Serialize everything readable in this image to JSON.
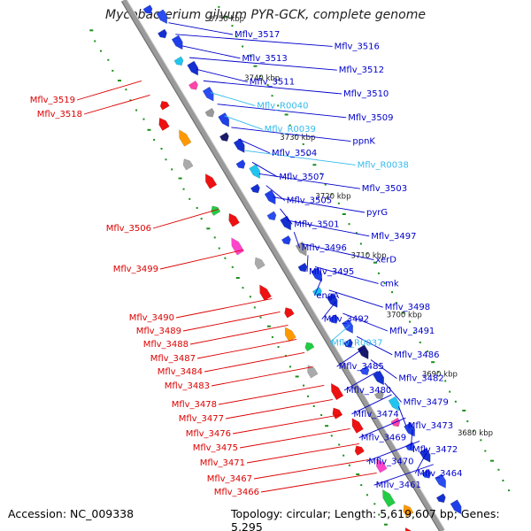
{
  "title": "Mycobacterium gilvum PYR-GCK, complete genome",
  "footer": {
    "accession_label": "Accession:",
    "accession": "NC_009338",
    "topology_text": "Topology: circular; Length: 5,619,607 bp; Genes: 5,295"
  },
  "colors": {
    "forward_label": "#0000cc",
    "rna_label": "#33bbee",
    "reverse_label": "#dd0000",
    "backbone": "#9a9a9a",
    "gc_dots": "#1a8f1a"
  },
  "scale_ticks": [
    "3750 kbp",
    "3740 kbp",
    "3730 kbp",
    "3720 kbp",
    "3710 kbp",
    "3700 kbp",
    "3690 kbp",
    "3680 kbp"
  ],
  "right_labels": [
    {
      "text": "Mflv_3517",
      "kind": "gene"
    },
    {
      "text": "Mflv_3516",
      "kind": "gene"
    },
    {
      "text": "Mflv_3513",
      "kind": "gene"
    },
    {
      "text": "Mflv_3512",
      "kind": "gene"
    },
    {
      "text": "Mflv_3511",
      "kind": "gene"
    },
    {
      "text": "Mflv_3510",
      "kind": "gene"
    },
    {
      "text": "Mflv_R0040",
      "kind": "rna"
    },
    {
      "text": "Mflv_3509",
      "kind": "gene"
    },
    {
      "text": "Mflv_R0039",
      "kind": "rna"
    },
    {
      "text": "ppnK",
      "kind": "gene"
    },
    {
      "text": "Mflv_3504",
      "kind": "gene"
    },
    {
      "text": "Mflv_R0038",
      "kind": "rna"
    },
    {
      "text": "Mflv_3507",
      "kind": "gene"
    },
    {
      "text": "Mflv_3503",
      "kind": "gene"
    },
    {
      "text": "Mflv_3505",
      "kind": "gene"
    },
    {
      "text": "pyrG",
      "kind": "gene"
    },
    {
      "text": "Mflv_3501",
      "kind": "gene"
    },
    {
      "text": "Mflv_3497",
      "kind": "gene"
    },
    {
      "text": "Mflv_3496",
      "kind": "gene"
    },
    {
      "text": "xerD",
      "kind": "gene"
    },
    {
      "text": "Mflv_3495",
      "kind": "gene"
    },
    {
      "text": "cmk",
      "kind": "gene"
    },
    {
      "text": "engA",
      "kind": "gene"
    },
    {
      "text": "Mflv_3498",
      "kind": "gene"
    },
    {
      "text": "Mflv_3492",
      "kind": "gene"
    },
    {
      "text": "Mflv_3491",
      "kind": "gene"
    },
    {
      "text": "Mflv_R0037",
      "kind": "rna"
    },
    {
      "text": "Mflv_3486",
      "kind": "gene"
    },
    {
      "text": "Mflv_3485",
      "kind": "gene"
    },
    {
      "text": "Mflv_3482",
      "kind": "gene"
    },
    {
      "text": "Mflv_3480",
      "kind": "gene"
    },
    {
      "text": "Mflv_3479",
      "kind": "gene"
    },
    {
      "text": "Mflv_3474",
      "kind": "gene"
    },
    {
      "text": "Mflv_3473",
      "kind": "gene"
    },
    {
      "text": "Mflv_3469",
      "kind": "gene"
    },
    {
      "text": "Mflv_3472",
      "kind": "gene"
    },
    {
      "text": "Mflv_3470",
      "kind": "gene"
    },
    {
      "text": "Mflv_3464",
      "kind": "gene"
    },
    {
      "text": "Mflv_3461",
      "kind": "gene"
    }
  ],
  "left_labels": [
    "Mflv_3519",
    "Mflv_3518",
    "Mflv_3506",
    "Mflv_3499",
    "Mflv_3490",
    "Mflv_3489",
    "Mflv_3488",
    "Mflv_3487",
    "Mflv_3484",
    "Mflv_3483",
    "Mflv_3478",
    "Mflv_3477",
    "Mflv_3476",
    "Mflv_3475",
    "Mflv_3471",
    "Mflv_3467",
    "Mflv_3466"
  ]
}
